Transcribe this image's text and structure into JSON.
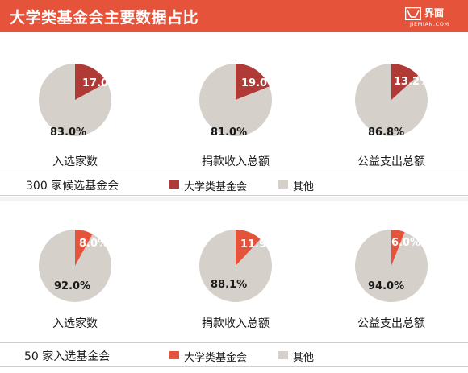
{
  "header": {
    "title": "大学类基金会主要数据占比",
    "logo_name": "界面",
    "logo_sub": "JIEMIAN.COM"
  },
  "colors": {
    "header_bg": "#e5533b",
    "other": "#d6d0ca",
    "panel_a_highlight": "#b03a36",
    "panel_b_highlight": "#e5533b"
  },
  "chart_data": [
    {
      "type": "pie",
      "group": "300 家候选基金会",
      "highlight_color": "#b03a36",
      "other_color": "#d6d0ca",
      "pies": [
        {
          "caption": "入选家数",
          "highlight_value": 17.0,
          "other_value": 83.0,
          "highlight_label": "17.0%",
          "other_label": "83.0%"
        },
        {
          "caption": "捐款收入总额",
          "highlight_value": 19.0,
          "other_value": 81.0,
          "highlight_label": "19.0%",
          "other_label": "81.0%"
        },
        {
          "caption": "公益支出总额",
          "highlight_value": 13.2,
          "other_value": 86.8,
          "highlight_label": "13.2%",
          "other_label": "86.8%"
        }
      ],
      "legend": {
        "title": "300 家候选基金会",
        "items": [
          "大学类基金会",
          "其他"
        ]
      }
    },
    {
      "type": "pie",
      "group": "50 家入选基金会",
      "highlight_color": "#e5533b",
      "other_color": "#d6d0ca",
      "pies": [
        {
          "caption": "入选家数",
          "highlight_value": 8.0,
          "other_value": 92.0,
          "highlight_label": "8.0%",
          "other_label": "92.0%"
        },
        {
          "caption": "捐款收入总额",
          "highlight_value": 11.9,
          "other_value": 88.1,
          "highlight_label": "11.9%",
          "other_label": "88.1%"
        },
        {
          "caption": "公益支出总额",
          "highlight_value": 6.0,
          "other_value": 94.0,
          "highlight_label": "6.0%",
          "other_label": "94.0%"
        }
      ],
      "legend": {
        "title": "50 家入选基金会",
        "items": [
          "大学类基金会",
          "其他"
        ]
      }
    }
  ]
}
